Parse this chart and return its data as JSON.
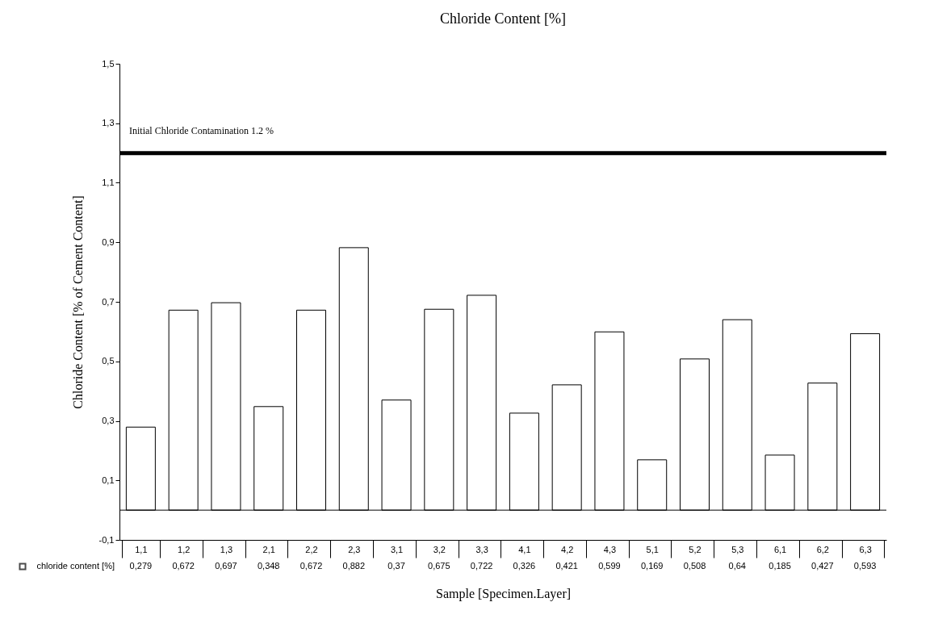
{
  "chart_data": {
    "type": "bar",
    "title": "Chloride Content [%]",
    "xlabel": "Sample [Specimen.Layer]",
    "ylabel": "Chloride Content [% of Cement Content]",
    "categories": [
      "1,1",
      "1,2",
      "1,3",
      "2,1",
      "2,2",
      "2,3",
      "3,1",
      "3,2",
      "3,3",
      "4,1",
      "4,2",
      "4,3",
      "5,1",
      "5,2",
      "5,3",
      "6,1",
      "6,2",
      "6,3"
    ],
    "series": [
      {
        "name": "chloride content [%]",
        "color": "#ffffff",
        "values": [
          0.279,
          0.672,
          0.697,
          0.348,
          0.672,
          0.882,
          0.37,
          0.675,
          0.722,
          0.326,
          0.421,
          0.599,
          0.169,
          0.508,
          0.64,
          0.185,
          0.427,
          0.593
        ],
        "value_labels": [
          "0,279",
          "0,672",
          "0,697",
          "0,348",
          "0,672",
          "0,882",
          "0,37",
          "0,675",
          "0,722",
          "0,326",
          "0,421",
          "0,599",
          "0,169",
          "0,508",
          "0,64",
          "0,185",
          "0,427",
          "0,593"
        ]
      }
    ],
    "ylim": [
      -0.1,
      1.5
    ],
    "yticks": [
      {
        "value": -0.1,
        "label": "-0,1"
      },
      {
        "value": 0.1,
        "label": "0,1"
      },
      {
        "value": 0.3,
        "label": "0,3"
      },
      {
        "value": 0.5,
        "label": "0,5"
      },
      {
        "value": 0.7,
        "label": "0,7"
      },
      {
        "value": 0.9,
        "label": "0,9"
      },
      {
        "value": 1.1,
        "label": "1,1"
      },
      {
        "value": 1.3,
        "label": "1,3"
      },
      {
        "value": 1.5,
        "label": "1,5"
      }
    ],
    "ref_lines": [
      {
        "axis": "y",
        "value": 1.2,
        "label": "Initial Chloride Contamination 1.2 %",
        "color": "#000000"
      }
    ],
    "grid": false
  }
}
